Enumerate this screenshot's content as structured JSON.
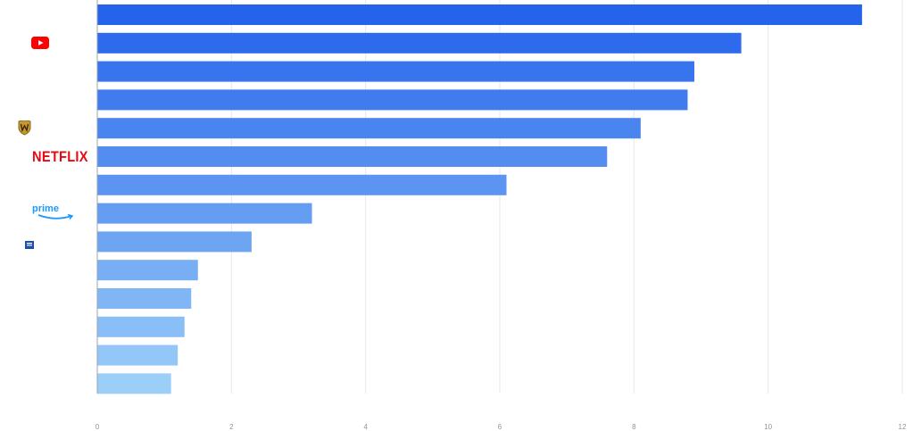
{
  "chart_data": {
    "type": "bar",
    "orientation": "horizontal",
    "categories": [
      "YouTube",
      "",
      "",
      "",
      "Warner Bros.",
      "Netflix",
      "",
      "Prime Video",
      "",
      "",
      "",
      "",
      "",
      ""
    ],
    "values": [
      11.4,
      9.6,
      8.9,
      8.8,
      8.1,
      7.6,
      6.1,
      3.2,
      2.3,
      1.5,
      1.4,
      1.3,
      1.2,
      1.1
    ],
    "xlim": [
      0,
      12
    ],
    "xticks": [
      "0",
      "2",
      "4",
      "6",
      "8",
      "10",
      "12"
    ],
    "grid": true,
    "legend": "none",
    "colors": {
      "bar_start": "#2563eb",
      "bar_end": "#9ccff8",
      "grid": "#e5e7eb",
      "axis": "#9ca3af"
    },
    "logos": [
      {
        "row": 0,
        "icon": "youtube-logo-icon"
      },
      {
        "row": 4,
        "icon": "warner-bros-shield-icon"
      },
      {
        "row": 5,
        "icon": "netflix-logo-icon",
        "text": "NETFLIX"
      },
      {
        "row": 7,
        "icon": "prime-video-logo-icon",
        "text": "prime"
      },
      {
        "row": 8,
        "icon": "small-channel-logo-icon"
      }
    ]
  }
}
